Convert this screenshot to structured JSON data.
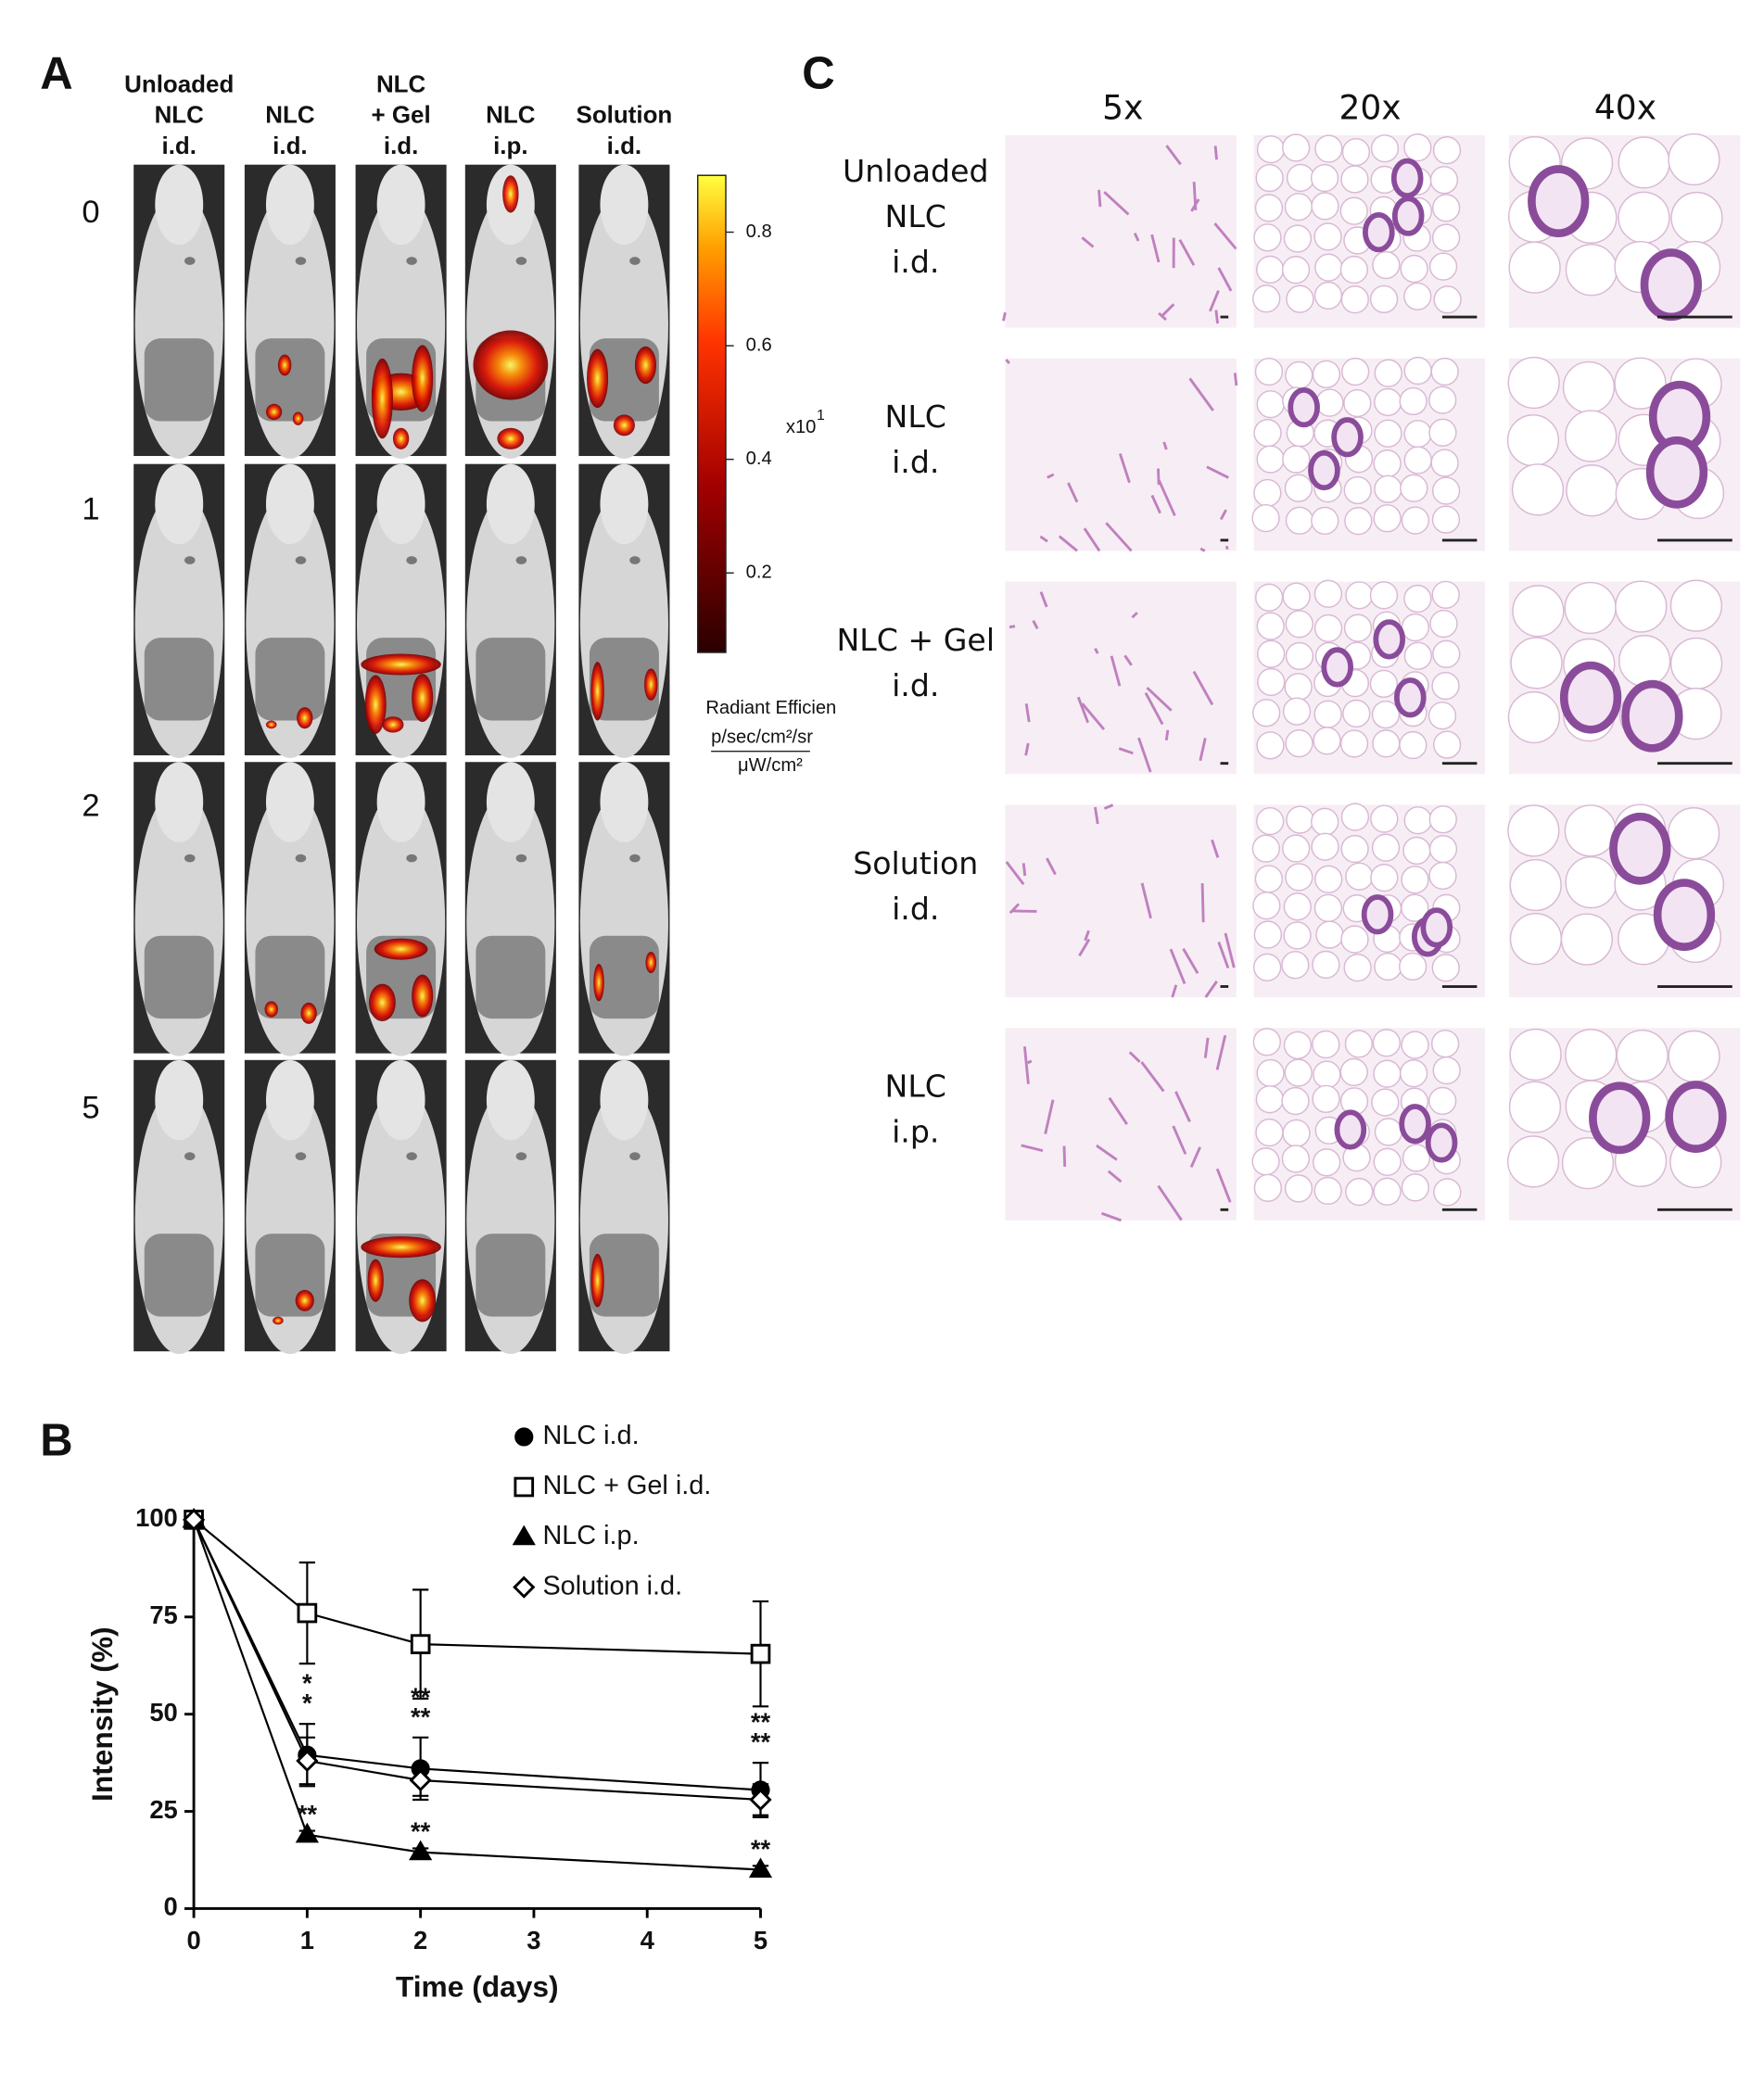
{
  "panel_labels": [
    "A",
    "B",
    "C"
  ],
  "imaging": {
    "columns": [
      [
        "Unloaded",
        "NLC",
        "i.d."
      ],
      [
        "NLC",
        "i.d."
      ],
      [
        "NLC",
        "+ Gel",
        "i.d."
      ],
      [
        "NLC",
        "i.p."
      ],
      [
        "Solution",
        "i.d."
      ]
    ],
    "rows": [
      "0",
      "1",
      "2",
      "5"
    ],
    "colorbar": {
      "lim": [
        0.06,
        0.9
      ],
      "ticks": [
        0.2,
        0.4,
        0.6,
        0.8
      ],
      "scale_base": "x10",
      "scale_exponent": "1",
      "title": "Radiant Efficien",
      "unit_numerator": "p/sec/cm²/sr",
      "unit_denominator": "μW/cm²"
    }
  },
  "histology": {
    "magnifications": [
      "5x",
      "20x",
      "40x"
    ],
    "rows": [
      [
        "Unloaded",
        "NLC",
        "i.d."
      ],
      [
        "NLC",
        "i.d."
      ],
      [
        "NLC + Gel",
        "i.d."
      ],
      [
        "Solution",
        "i.d."
      ],
      [
        "NLC",
        "i.p."
      ]
    ]
  },
  "chart_data": {
    "type": "line",
    "x": [
      0,
      1,
      2,
      5
    ],
    "xlim": [
      0,
      5
    ],
    "xticks": [
      0,
      1,
      2,
      3,
      4,
      5
    ],
    "ylim": [
      0,
      100
    ],
    "yticks": [
      0,
      25,
      50,
      75,
      100
    ],
    "xlabel": "Time (days)",
    "ylabel": "Intensity  (%)",
    "series": [
      {
        "name": "NLC i.d.",
        "color": "#000000",
        "marker": "circle",
        "filled": true,
        "values": [
          100,
          39.5,
          36,
          30.5
        ],
        "errors": [
          null,
          8,
          8,
          7
        ]
      },
      {
        "name": "NLC + Gel i.d.",
        "color": "#000000",
        "marker": "square",
        "filled": false,
        "values": [
          100,
          76,
          68,
          65.5
        ],
        "errors": [
          null,
          13,
          14,
          13.5
        ]
      },
      {
        "name": "NLC i.p.",
        "color": "#000000",
        "marker": "triangle",
        "filled": true,
        "values": [
          100,
          19,
          14.5,
          10
        ],
        "errors": [
          null,
          1,
          1,
          1
        ]
      },
      {
        "name": "Solution i.d.",
        "color": "#000000",
        "marker": "diamond",
        "filled": false,
        "values": [
          100,
          38,
          33,
          28
        ],
        "errors": [
          null,
          6,
          4,
          4
        ]
      }
    ],
    "significance": [
      {
        "x": 1,
        "labels": [
          "*",
          "*",
          "**"
        ]
      },
      {
        "x": 2,
        "labels": [
          "**",
          "**",
          "**"
        ]
      },
      {
        "x": 5,
        "labels": [
          "**",
          "**",
          "**"
        ]
      }
    ]
  }
}
